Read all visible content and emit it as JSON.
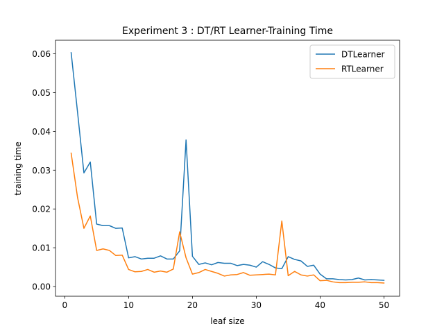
{
  "chart_data": {
    "type": "line",
    "title": "Experiment 3 : DT/RT Learner-Training Time",
    "xlabel": "leaf size",
    "ylabel": "training time",
    "xlim": [
      -1.45,
      52.45
    ],
    "ylim": [
      -0.0025,
      0.0635
    ],
    "xticks": [
      0,
      10,
      20,
      30,
      40,
      50
    ],
    "xtick_labels": [
      "0",
      "10",
      "20",
      "30",
      "40",
      "50"
    ],
    "yticks": [
      0.0,
      0.01,
      0.02,
      0.03,
      0.04,
      0.05,
      0.06
    ],
    "ytick_labels": [
      "0.00",
      "0.01",
      "0.02",
      "0.03",
      "0.04",
      "0.05",
      "0.06"
    ],
    "legend_position": "top-right",
    "grid": false,
    "x": [
      1,
      2,
      3,
      4,
      5,
      6,
      7,
      8,
      9,
      10,
      11,
      12,
      13,
      14,
      15,
      16,
      17,
      18,
      19,
      20,
      21,
      22,
      23,
      24,
      25,
      26,
      27,
      28,
      29,
      30,
      31,
      32,
      33,
      34,
      35,
      36,
      37,
      38,
      39,
      40,
      41,
      42,
      43,
      44,
      45,
      46,
      47,
      48,
      49,
      50
    ],
    "series": [
      {
        "name": "DTLearner",
        "color": "#1f77b4",
        "values": [
          0.0603,
          0.045,
          0.0293,
          0.0321,
          0.0161,
          0.0157,
          0.0157,
          0.015,
          0.0151,
          0.0074,
          0.0077,
          0.0071,
          0.0073,
          0.0073,
          0.0079,
          0.0071,
          0.0071,
          0.0092,
          0.0378,
          0.0078,
          0.0057,
          0.0061,
          0.0056,
          0.0062,
          0.006,
          0.006,
          0.0054,
          0.0057,
          0.0055,
          0.005,
          0.0064,
          0.0057,
          0.0048,
          0.0046,
          0.0077,
          0.007,
          0.0066,
          0.0052,
          0.0055,
          0.0032,
          0.002,
          0.002,
          0.0018,
          0.0017,
          0.0018,
          0.0022,
          0.0017,
          0.0018,
          0.0017,
          0.0016
        ]
      },
      {
        "name": "RTLearner",
        "color": "#ff7f0e",
        "values": [
          0.0344,
          0.023,
          0.015,
          0.0182,
          0.0093,
          0.0097,
          0.0093,
          0.008,
          0.0081,
          0.0044,
          0.0038,
          0.0039,
          0.0044,
          0.0037,
          0.004,
          0.0037,
          0.0045,
          0.0141,
          0.0074,
          0.0032,
          0.0036,
          0.0044,
          0.0039,
          0.0034,
          0.0027,
          0.003,
          0.0031,
          0.0036,
          0.0029,
          0.003,
          0.0031,
          0.0032,
          0.003,
          0.0169,
          0.0028,
          0.0039,
          0.003,
          0.0027,
          0.003,
          0.0015,
          0.0016,
          0.0012,
          0.001,
          0.001,
          0.0011,
          0.0011,
          0.0012,
          0.001,
          0.001,
          0.0009
        ]
      }
    ]
  }
}
